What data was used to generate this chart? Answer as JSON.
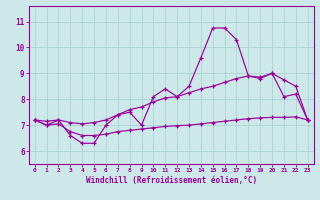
{
  "background_color": "#cde8e8",
  "line_color": "#990099",
  "grid_color": "#aad4d4",
  "xlabel": "Windchill (Refroidissement éolien,°C)",
  "x_ticks": [
    0,
    1,
    2,
    3,
    4,
    5,
    6,
    7,
    8,
    9,
    10,
    11,
    12,
    13,
    14,
    15,
    16,
    17,
    18,
    19,
    20,
    21,
    22,
    23
  ],
  "y_ticks": [
    6,
    7,
    8,
    9,
    10,
    11
  ],
  "ylim": [
    5.5,
    11.6
  ],
  "xlim": [
    -0.5,
    23.5
  ],
  "line_jagged": [
    7.2,
    7.0,
    7.2,
    6.6,
    6.3,
    6.3,
    7.0,
    7.4,
    7.5,
    7.0,
    8.1,
    8.4,
    8.1,
    8.5,
    9.6,
    10.75,
    10.75,
    10.3,
    8.9,
    8.8,
    9.0,
    8.1,
    8.2,
    7.2
  ],
  "line_diag": [
    7.2,
    7.15,
    7.2,
    7.1,
    7.05,
    7.1,
    7.2,
    7.4,
    7.6,
    7.7,
    7.9,
    8.05,
    8.1,
    8.25,
    8.4,
    8.5,
    8.65,
    8.8,
    8.9,
    8.85,
    9.0,
    8.75,
    8.5,
    7.2
  ],
  "line_flat": [
    7.2,
    7.0,
    7.05,
    6.75,
    6.6,
    6.6,
    6.65,
    6.75,
    6.8,
    6.85,
    6.9,
    6.95,
    6.98,
    7.0,
    7.05,
    7.1,
    7.15,
    7.2,
    7.25,
    7.28,
    7.3,
    7.3,
    7.32,
    7.2
  ]
}
